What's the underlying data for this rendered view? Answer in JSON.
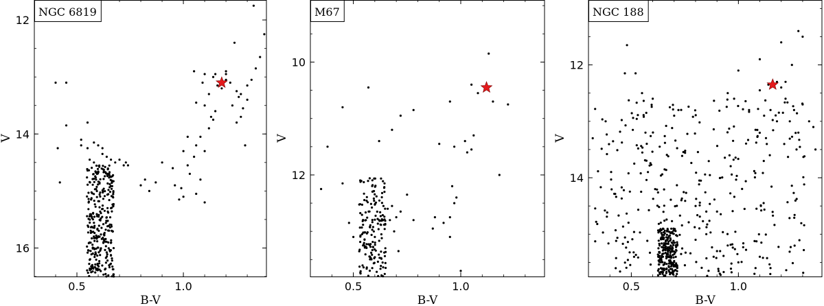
{
  "chart_data": [
    {
      "type": "scatter",
      "title": "NGC 6819",
      "xlabel": "B-V",
      "ylabel": "V",
      "xlim": [
        0.3,
        1.39
      ],
      "ylim": [
        16.5,
        11.65
      ],
      "y_inverted": true,
      "xticks": [
        0.5,
        1.0
      ],
      "xtick_labels": [
        "0.5",
        "1.0"
      ],
      "yticks": [
        12,
        14,
        16
      ],
      "ytick_labels": [
        "12",
        "14",
        "16"
      ],
      "highlight_color": "#e41a1c",
      "highlight": {
        "x": 1.18,
        "y": 13.1
      },
      "stars": [
        [
          0.4,
          13.1
        ],
        [
          0.45,
          13.1
        ],
        [
          0.41,
          14.25
        ],
        [
          0.45,
          13.85
        ],
        [
          0.42,
          14.85
        ],
        [
          0.52,
          14.1
        ],
        [
          0.52,
          14.2
        ],
        [
          0.55,
          13.8
        ],
        [
          0.55,
          14.25
        ],
        [
          0.58,
          14.15
        ],
        [
          0.56,
          14.45
        ],
        [
          0.58,
          14.5
        ],
        [
          0.6,
          14.2
        ],
        [
          0.62,
          14.25
        ],
        [
          0.62,
          14.35
        ],
        [
          0.64,
          14.4
        ],
        [
          0.66,
          14.45
        ],
        [
          0.68,
          14.5
        ],
        [
          0.7,
          14.45
        ],
        [
          0.72,
          14.55
        ],
        [
          0.73,
          14.5
        ],
        [
          0.74,
          14.55
        ],
        [
          0.8,
          14.9
        ],
        [
          0.82,
          14.8
        ],
        [
          0.84,
          15.0
        ],
        [
          0.87,
          14.85
        ],
        [
          0.9,
          14.5
        ],
        [
          0.95,
          14.6
        ],
        [
          0.96,
          14.9
        ],
        [
          0.99,
          14.95
        ],
        [
          1.0,
          15.1
        ],
        [
          0.98,
          15.15
        ],
        [
          1.0,
          14.3
        ],
        [
          1.02,
          14.55
        ],
        [
          1.03,
          14.7
        ],
        [
          1.05,
          14.4
        ],
        [
          1.06,
          14.2
        ],
        [
          1.08,
          14.05
        ],
        [
          1.1,
          14.3
        ],
        [
          1.08,
          14.8
        ],
        [
          1.06,
          15.05
        ],
        [
          1.1,
          15.2
        ],
        [
          1.12,
          13.9
        ],
        [
          1.13,
          13.7
        ],
        [
          1.15,
          13.6
        ],
        [
          1.1,
          13.5
        ],
        [
          1.06,
          13.45
        ],
        [
          1.12,
          13.3
        ],
        [
          1.14,
          13.0
        ],
        [
          1.16,
          13.15
        ],
        [
          1.18,
          13.2
        ],
        [
          1.2,
          13.05
        ],
        [
          1.22,
          13.1
        ],
        [
          1.2,
          12.95
        ],
        [
          1.25,
          13.25
        ],
        [
          1.27,
          13.3
        ],
        [
          1.28,
          13.55
        ],
        [
          1.27,
          13.7
        ],
        [
          1.25,
          13.8
        ],
        [
          1.23,
          13.5
        ],
        [
          1.3,
          13.15
        ],
        [
          1.32,
          13.05
        ],
        [
          1.34,
          12.85
        ],
        [
          1.36,
          12.65
        ],
        [
          1.38,
          12.25
        ],
        [
          1.33,
          11.75
        ],
        [
          1.29,
          14.2
        ],
        [
          1.2,
          12.9
        ],
        [
          1.1,
          12.95
        ],
        [
          1.09,
          13.1
        ],
        [
          1.24,
          12.4
        ],
        [
          1.15,
          12.95
        ],
        [
          1.05,
          12.9
        ],
        [
          1.26,
          13.35
        ],
        [
          1.3,
          13.4
        ],
        [
          1.02,
          14.05
        ],
        [
          1.14,
          13.75
        ]
      ],
      "dense_msto": {
        "x": [
          0.54,
          0.68
        ],
        "y": [
          14.55,
          16.5
        ],
        "count": 320
      }
    },
    {
      "type": "scatter",
      "title": "M67",
      "xlabel": "B-V",
      "ylabel": "V",
      "xlim": [
        0.3,
        1.39
      ],
      "ylim": [
        13.8,
        8.9
      ],
      "y_inverted": true,
      "xticks": [
        0.5,
        1.0
      ],
      "xtick_labels": [
        "0.5",
        "1.0"
      ],
      "yticks": [
        10,
        12
      ],
      "ytick_labels": [
        "10",
        "12"
      ],
      "highlight_color": "#e41a1c",
      "highlight": {
        "x": 1.12,
        "y": 10.45
      },
      "stars": [
        [
          0.38,
          11.5
        ],
        [
          0.45,
          10.8
        ],
        [
          0.45,
          12.15
        ],
        [
          0.57,
          10.45
        ],
        [
          0.62,
          11.4
        ],
        [
          0.68,
          11.2
        ],
        [
          0.72,
          10.95
        ],
        [
          0.78,
          10.85
        ],
        [
          0.9,
          11.45
        ],
        [
          0.95,
          10.7
        ],
        [
          0.97,
          11.5
        ],
        [
          1.05,
          10.4
        ],
        [
          1.08,
          10.55
        ],
        [
          1.13,
          9.85
        ],
        [
          1.15,
          10.7
        ],
        [
          1.18,
          12.0
        ],
        [
          1.22,
          10.75
        ],
        [
          1.02,
          11.4
        ],
        [
          1.03,
          11.6
        ],
        [
          1.05,
          11.55
        ],
        [
          1.06,
          11.3
        ],
        [
          0.96,
          12.2
        ],
        [
          0.97,
          12.5
        ],
        [
          0.95,
          12.75
        ],
        [
          0.95,
          13.1
        ],
        [
          0.92,
          12.85
        ],
        [
          0.88,
          12.75
        ],
        [
          0.87,
          12.95
        ],
        [
          0.75,
          12.35
        ],
        [
          0.78,
          12.8
        ],
        [
          0.72,
          12.65
        ],
        [
          0.7,
          12.75
        ],
        [
          0.68,
          12.55
        ],
        [
          0.64,
          12.55
        ],
        [
          0.66,
          12.6
        ],
        [
          0.67,
          12.8
        ],
        [
          0.62,
          12.8
        ],
        [
          0.6,
          13.1
        ],
        [
          0.55,
          13.25
        ],
        [
          0.5,
          13.1
        ],
        [
          0.48,
          12.85
        ],
        [
          0.35,
          12.25
        ],
        [
          0.98,
          12.4
        ],
        [
          1.0,
          13.7
        ],
        [
          0.69,
          13.0
        ],
        [
          0.71,
          13.35
        ]
      ],
      "dense_msto": {
        "x": [
          0.52,
          0.66
        ],
        "y": [
          12.0,
          13.8
        ],
        "count": 170
      }
    },
    {
      "type": "scatter",
      "title": "NGC 188",
      "xlabel": "B-V",
      "ylabel": "V",
      "xlim": [
        0.3,
        1.39
      ],
      "ylim": [
        15.75,
        10.85
      ],
      "y_inverted": true,
      "xticks": [
        0.5,
        1.0
      ],
      "xtick_labels": [
        "0.5",
        "1.0"
      ],
      "yticks": [
        12,
        14
      ],
      "ytick_labels": [
        "12",
        "14"
      ],
      "highlight_color": "#e41a1c",
      "highlight": {
        "x": 1.16,
        "y": 12.35
      },
      "stars": [
        [
          0.48,
          11.65
        ],
        [
          0.52,
          12.15
        ],
        [
          0.47,
          12.15
        ],
        [
          0.55,
          12.5
        ],
        [
          0.57,
          12.85
        ],
        [
          0.6,
          12.6
        ],
        [
          0.68,
          12.75
        ],
        [
          0.72,
          12.8
        ],
        [
          0.7,
          12.9
        ],
        [
          1.0,
          12.1
        ],
        [
          1.1,
          11.9
        ],
        [
          1.2,
          11.6
        ],
        [
          1.28,
          11.4
        ],
        [
          1.3,
          11.5
        ],
        [
          1.25,
          12.0
        ],
        [
          1.2,
          12.4
        ],
        [
          1.22,
          12.6
        ],
        [
          1.26,
          12.8
        ],
        [
          1.3,
          12.7
        ],
        [
          1.33,
          13.0
        ],
        [
          1.35,
          13.1
        ],
        [
          1.36,
          13.5
        ],
        [
          1.28,
          13.2
        ],
        [
          1.24,
          13.0
        ],
        [
          1.18,
          13.0
        ],
        [
          1.15,
          12.8
        ],
        [
          1.12,
          12.9
        ],
        [
          1.08,
          13.15
        ],
        [
          1.05,
          12.8
        ],
        [
          0.98,
          12.6
        ],
        [
          0.95,
          12.5
        ],
        [
          0.32,
          13.3
        ],
        [
          0.38,
          13.0
        ],
        [
          1.15,
          15.6
        ],
        [
          1.1,
          15.4
        ],
        [
          1.08,
          15.6
        ],
        [
          1.0,
          15.5
        ],
        [
          0.95,
          15.2
        ],
        [
          0.9,
          15.3
        ],
        [
          0.85,
          15.0
        ],
        [
          0.8,
          15.1
        ],
        [
          0.75,
          15.55
        ],
        [
          0.8,
          14.5
        ],
        [
          0.85,
          14.6
        ],
        [
          0.9,
          14.6
        ],
        [
          1.14,
          12.35
        ],
        [
          1.18,
          12.3
        ],
        [
          1.1,
          12.45
        ],
        [
          1.22,
          12.3
        ]
      ],
      "dense_msto": {
        "x": [
          0.62,
          0.72
        ],
        "y": [
          14.9,
          15.75
        ],
        "count": 230
      },
      "field_scatter": {
        "x": [
          0.33,
          1.32
        ],
        "y": [
          12.6,
          15.75
        ],
        "count": 330
      }
    }
  ]
}
